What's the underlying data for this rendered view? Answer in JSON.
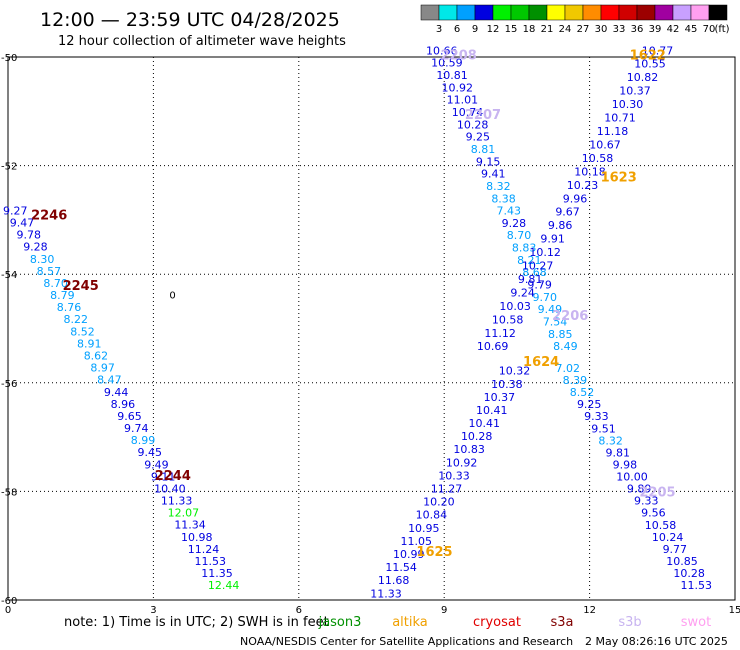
{
  "title": "12:00 — 23:59 UTC 04/28/2025",
  "subtitle": "12 hour collection of altimeter wave heights",
  "colorbar": {
    "colors": [
      "#888888",
      "#00e8e8",
      "#00a0ff",
      "#0000e0",
      "#00f000",
      "#00c800",
      "#009000",
      "#ffff00",
      "#f0c800",
      "#ff8c00",
      "#ff0000",
      "#d00000",
      "#9c0000",
      "#a000a0",
      "#c8a0ff",
      "#ffa0f0",
      "#000000"
    ],
    "ticks": [
      "3",
      "6",
      "9",
      "12",
      "15",
      "18",
      "21",
      "24",
      "27",
      "30",
      "33",
      "36",
      "39",
      "42",
      "45",
      "70"
    ],
    "unit": "(ft)"
  },
  "axes": {
    "x_ticks": [
      "0",
      "3",
      "6",
      "9",
      "12",
      "15"
    ],
    "y_ticks": [
      "-50",
      "-52",
      "-54",
      "-56",
      "-58",
      "-60"
    ],
    "xlim": [
      0,
      15
    ],
    "ylim": [
      -60,
      -50
    ]
  },
  "contour_label": "0",
  "pass_labels": [
    {
      "text": "2208",
      "color": "#c8b4f0",
      "x": 9.3,
      "y": -49.95
    },
    {
      "text": "1622",
      "color": "#f0a000",
      "x": 13.2,
      "y": -49.95
    },
    {
      "text": "2207",
      "color": "#c8b4f0",
      "x": 9.8,
      "y": -51.05
    },
    {
      "text": "1623",
      "color": "#f0a000",
      "x": 12.6,
      "y": -52.2
    },
    {
      "text": "2246",
      "color": "#800000",
      "x": 0.85,
      "y": -52.9
    },
    {
      "text": "2245",
      "color": "#800000",
      "x": 1.5,
      "y": -54.2
    },
    {
      "text": "2206",
      "color": "#c8b4f0",
      "x": 11.6,
      "y": -54.75
    },
    {
      "text": "1624",
      "color": "#f0a000",
      "x": 11.0,
      "y": -55.6
    },
    {
      "text": "2244",
      "color": "#800000",
      "x": 3.4,
      "y": -57.7
    },
    {
      "text": "2205",
      "color": "#c8b4f0",
      "x": 13.4,
      "y": -58.0
    },
    {
      "text": "1625",
      "color": "#f0a000",
      "x": 8.8,
      "y": -59.1
    }
  ],
  "tracks": [
    {
      "name": "track-2246",
      "x0": 0.15,
      "y0": -52.9,
      "x1": 4.45,
      "y1": -59.8,
      "values": [
        "9.27",
        "9.47",
        "9.78",
        "9.28",
        "8.30",
        "8.57",
        "8.70",
        "8.79",
        "8.76",
        "8.22",
        "8.52",
        "8.91",
        "8.62",
        "8.97",
        "8.47",
        "9.44",
        "8.96",
        "9.65",
        "9.74",
        "8.99",
        "9.45",
        "9.49",
        "9.11",
        "10.40",
        "11.33",
        "12.07",
        "11.34",
        "10.98",
        "11.24",
        "11.53",
        "11.35",
        "12.44"
      ],
      "colors": [
        "#0000e0",
        "#0000e0",
        "#0000e0",
        "#0000e0",
        "#00a0ff",
        "#00a0ff",
        "#00a0ff",
        "#00a0ff",
        "#00a0ff",
        "#00a0ff",
        "#00a0ff",
        "#00a0ff",
        "#00a0ff",
        "#00a0ff",
        "#00a0ff",
        "#0000e0",
        "#0000e0",
        "#0000e0",
        "#0000e0",
        "#00a0ff",
        "#0000e0",
        "#0000e0",
        "#0000e0",
        "#0000e0",
        "#0000e0",
        "#00f000",
        "#0000e0",
        "#0000e0",
        "#0000e0",
        "#0000e0",
        "#0000e0",
        "#00f000"
      ]
    },
    {
      "name": "track-2208",
      "x0": 8.95,
      "y0": -49.95,
      "x1": 11.5,
      "y1": -55.4,
      "values": [
        "10.66",
        "10.59",
        "10.81",
        "10.92",
        "11.01",
        "10.74",
        "10.28",
        "9.25",
        "8.81",
        "9.15",
        "9.41",
        "8.32",
        "8.38",
        "7.43",
        "9.28",
        "8.70",
        "8.83",
        "8.21",
        "8.68",
        "9.79",
        "9.70",
        "9.49",
        "7.54",
        "8.85",
        "8.49"
      ],
      "colors": [
        "#0000e0",
        "#0000e0",
        "#0000e0",
        "#0000e0",
        "#0000e0",
        "#0000e0",
        "#0000e0",
        "#0000e0",
        "#00a0ff",
        "#0000e0",
        "#0000e0",
        "#00a0ff",
        "#00a0ff",
        "#00a0ff",
        "#0000e0",
        "#00a0ff",
        "#00a0ff",
        "#00a0ff",
        "#00a0ff",
        "#0000e0",
        "#00a0ff",
        "#00a0ff",
        "#00a0ff",
        "#00a0ff",
        "#00a0ff"
      ]
    },
    {
      "name": "track-1622",
      "x0": 13.4,
      "y0": -49.95,
      "x1": 10.0,
      "y1": -55.4,
      "values": [
        "10.77",
        "10.55",
        "10.82",
        "10.37",
        "10.30",
        "10.71",
        "11.18",
        "10.67",
        "10.58",
        "10.18",
        "10.23",
        "9.96",
        "9.67",
        "9.86",
        "9.91",
        "10.12",
        "10.27",
        "9.81",
        "9.24",
        "10.03",
        "10.58",
        "11.12",
        "10.69"
      ],
      "colors": [
        "#0000e0",
        "#0000e0",
        "#0000e0",
        "#0000e0",
        "#0000e0",
        "#0000e0",
        "#0000e0",
        "#0000e0",
        "#0000e0",
        "#0000e0",
        "#0000e0",
        "#0000e0",
        "#0000e0",
        "#0000e0",
        "#0000e0",
        "#0000e0",
        "#0000e0",
        "#0000e0",
        "#0000e0",
        "#0000e0",
        "#0000e0",
        "#0000e0",
        "#0000e0"
      ]
    },
    {
      "name": "track-1625",
      "x0": 10.45,
      "y0": -55.85,
      "x1": 7.8,
      "y1": -59.95,
      "values": [
        "10.32",
        "10.38",
        "10.37",
        "10.41",
        "10.41",
        "10.28",
        "10.83",
        "10.92",
        "10.33",
        "11.27",
        "10.20",
        "10.84",
        "10.95",
        "11.05",
        "10.99",
        "11.54",
        "11.68",
        "11.33"
      ],
      "colors": [
        "#0000e0",
        "#0000e0",
        "#0000e0",
        "#0000e0",
        "#0000e0",
        "#0000e0",
        "#0000e0",
        "#0000e0",
        "#0000e0",
        "#0000e0",
        "#0000e0",
        "#0000e0",
        "#0000e0",
        "#0000e0",
        "#0000e0",
        "#0000e0",
        "#0000e0",
        "#0000e0"
      ]
    },
    {
      "name": "track-2205",
      "x0": 11.55,
      "y0": -55.8,
      "x1": 14.2,
      "y1": -59.8,
      "values": [
        "7.02",
        "8.39",
        "8.52",
        "9.25",
        "9.33",
        "9.51",
        "8.32",
        "9.81",
        "9.98",
        "10.00",
        "9.89",
        "9.33",
        "9.56",
        "10.58",
        "10.24",
        "9.77",
        "10.85",
        "10.28",
        "11.53"
      ],
      "colors": [
        "#00a0ff",
        "#00a0ff",
        "#00a0ff",
        "#0000e0",
        "#0000e0",
        "#0000e0",
        "#00a0ff",
        "#0000e0",
        "#0000e0",
        "#0000e0",
        "#0000e0",
        "#0000e0",
        "#0000e0",
        "#0000e0",
        "#0000e0",
        "#0000e0",
        "#0000e0",
        "#0000e0",
        "#0000e0"
      ]
    }
  ],
  "footer": {
    "note": "note:  1) Time is in UTC; 2) SWH is in feet",
    "satellites": [
      {
        "name": "jason3",
        "color": "#009000"
      },
      {
        "name": "altika",
        "color": "#f0a000"
      },
      {
        "name": "cryosat",
        "color": "#e00000"
      },
      {
        "name": "s3a",
        "color": "#800000"
      },
      {
        "name": "s3b",
        "color": "#c8b4f0"
      },
      {
        "name": "swot",
        "color": "#ffa0f0"
      }
    ],
    "credit": "NOAA/NESDIS Center for Satellite Applications and Research",
    "timestamp": "2 May 08:26:16 UTC 2025"
  }
}
